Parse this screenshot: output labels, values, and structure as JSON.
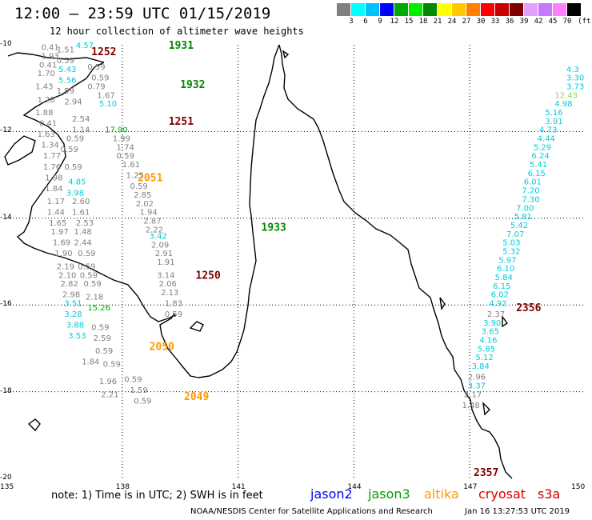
{
  "title": "12:00 – 23:59 UTC 01/15/2019",
  "subtitle": "12 hour collection of altimeter wave heights",
  "unit_label": "(ft)",
  "scale": {
    "colors": [
      "#7f7f7f",
      "#00ffff",
      "#00bfff",
      "#0000ff",
      "#00aa00",
      "#00ee00",
      "#008800",
      "#ffff00",
      "#ffc800",
      "#ff8000",
      "#ff0000",
      "#c80000",
      "#800000",
      "#e0a0ff",
      "#c878ff",
      "#ff80ff",
      "#000000"
    ],
    "ticks": [
      "3",
      "6",
      "9",
      "12",
      "15",
      "18",
      "21",
      "24",
      "27",
      "30",
      "33",
      "36",
      "39",
      "42",
      "45",
      "70"
    ]
  },
  "axes": {
    "lon_labels": [
      "135",
      "138",
      "141",
      "144",
      "147",
      "150"
    ],
    "lat_labels": [
      "-10",
      "-12",
      "-14",
      "-16",
      "-18",
      "-20"
    ]
  },
  "note": "note: 1) Time is in UTC; 2) SWH is in feet",
  "satellites": [
    {
      "name": "jason2",
      "color": "#0000ff"
    },
    {
      "name": "jason3",
      "color": "#00a000"
    },
    {
      "name": "altika",
      "color": "#ff9900"
    },
    {
      "name": "cryosat",
      "color": "#e00000"
    },
    {
      "name": "s3a",
      "color": "#c80000"
    }
  ],
  "footer_left": "NOAA/NESDIS Center for Satellite Applications and Research",
  "footer_right": "Jan 16 13:27:53 UTC 2019",
  "track_labels": [
    {
      "text": "1252",
      "lon": 137.2,
      "lat": -10.15,
      "color": "#800000"
    },
    {
      "text": "1931",
      "lon": 139.2,
      "lat": -10.0,
      "color": "#008800"
    },
    {
      "text": "1932",
      "lon": 139.5,
      "lat": -10.9,
      "color": "#008800"
    },
    {
      "text": "1251",
      "lon": 139.2,
      "lat": -11.75,
      "color": "#800000"
    },
    {
      "text": "2051",
      "lon": 138.4,
      "lat": -13.05,
      "color": "#ff9900"
    },
    {
      "text": "1933",
      "lon": 141.6,
      "lat": -14.2,
      "color": "#008800"
    },
    {
      "text": "1250",
      "lon": 139.9,
      "lat": -15.3,
      "color": "#800000"
    },
    {
      "text": "2050",
      "lon": 138.7,
      "lat": -16.95,
      "color": "#ff9900"
    },
    {
      "text": "2049",
      "lon": 139.6,
      "lat": -18.1,
      "color": "#ff9900"
    },
    {
      "text": "2356",
      "lon": 148.2,
      "lat": -16.05,
      "color": "#800000"
    },
    {
      "text": "2357",
      "lon": 147.1,
      "lat": -19.85,
      "color": "#800000"
    }
  ],
  "observations": [
    {
      "v": "0.41",
      "lon": 135.9,
      "lat": -10.05,
      "c": "#7f7f7f"
    },
    {
      "v": "1.51",
      "lon": 136.3,
      "lat": -10.1,
      "c": "#7f7f7f"
    },
    {
      "v": "4.57",
      "lon": 136.8,
      "lat": -10.0,
      "c": "#00ccdd"
    },
    {
      "v": "1.93",
      "lon": 135.9,
      "lat": -10.25,
      "c": "#7f7f7f"
    },
    {
      "v": "0.59",
      "lon": 136.3,
      "lat": -10.35,
      "c": "#7f7f7f"
    },
    {
      "v": "0.41",
      "lon": 135.85,
      "lat": -10.45,
      "c": "#7f7f7f"
    },
    {
      "v": "5.43",
      "lon": 136.35,
      "lat": -10.55,
      "c": "#00ccdd"
    },
    {
      "v": "0.59",
      "lon": 137.1,
      "lat": -10.5,
      "c": "#7f7f7f"
    },
    {
      "v": "1.70",
      "lon": 135.8,
      "lat": -10.65,
      "c": "#7f7f7f"
    },
    {
      "v": "5.56",
      "lon": 136.35,
      "lat": -10.8,
      "c": "#00ccdd"
    },
    {
      "v": "0.59",
      "lon": 137.2,
      "lat": -10.75,
      "c": "#7f7f7f"
    },
    {
      "v": "1.43",
      "lon": 135.75,
      "lat": -10.95,
      "c": "#7f7f7f"
    },
    {
      "v": "0.79",
      "lon": 137.1,
      "lat": -10.95,
      "c": "#7f7f7f"
    },
    {
      "v": "1.59",
      "lon": 136.3,
      "lat": -11.05,
      "c": "#7f7f7f"
    },
    {
      "v": "1.67",
      "lon": 137.35,
      "lat": -11.15,
      "c": "#7f7f7f"
    },
    {
      "v": "1.28",
      "lon": 135.8,
      "lat": -11.25,
      "c": "#7f7f7f"
    },
    {
      "v": "2.94",
      "lon": 136.5,
      "lat": -11.3,
      "c": "#7f7f7f"
    },
    {
      "v": "5.10",
      "lon": 137.4,
      "lat": -11.35,
      "c": "#00ccdd"
    },
    {
      "v": "1.88",
      "lon": 135.75,
      "lat": -11.55,
      "c": "#7f7f7f"
    },
    {
      "v": "2.54",
      "lon": 136.7,
      "lat": -11.7,
      "c": "#7f7f7f"
    },
    {
      "v": "0.41",
      "lon": 135.85,
      "lat": -11.8,
      "c": "#7f7f7f"
    },
    {
      "v": "1.14",
      "lon": 136.7,
      "lat": -11.95,
      "c": "#7f7f7f"
    },
    {
      "v": "17.90",
      "lon": 137.55,
      "lat": -11.95,
      "c": "#00aa00"
    },
    {
      "v": "1.63",
      "lon": 135.8,
      "lat": -12.05,
      "c": "#7f7f7f"
    },
    {
      "v": "0.59",
      "lon": 136.55,
      "lat": -12.15,
      "c": "#7f7f7f"
    },
    {
      "v": "1.99",
      "lon": 137.75,
      "lat": -12.15,
      "c": "#7f7f7f"
    },
    {
      "v": "1.34",
      "lon": 135.9,
      "lat": -12.3,
      "c": "#7f7f7f"
    },
    {
      "v": "1.74",
      "lon": 137.85,
      "lat": -12.35,
      "c": "#7f7f7f"
    },
    {
      "v": "0.59",
      "lon": 136.4,
      "lat": -12.4,
      "c": "#7f7f7f"
    },
    {
      "v": "1.77",
      "lon": 135.95,
      "lat": -12.55,
      "c": "#7f7f7f"
    },
    {
      "v": "0.59",
      "lon": 137.85,
      "lat": -12.55,
      "c": "#7f7f7f"
    },
    {
      "v": "1.76",
      "lon": 135.95,
      "lat": -12.8,
      "c": "#7f7f7f"
    },
    {
      "v": "0.59",
      "lon": 136.5,
      "lat": -12.8,
      "c": "#7f7f7f"
    },
    {
      "v": "1.61",
      "lon": 138.0,
      "lat": -12.75,
      "c": "#7f7f7f"
    },
    {
      "v": "1.98",
      "lon": 136.0,
      "lat": -13.05,
      "c": "#7f7f7f"
    },
    {
      "v": "1.25",
      "lon": 138.1,
      "lat": -13.0,
      "c": "#7f7f7f"
    },
    {
      "v": "4.85",
      "lon": 136.6,
      "lat": -13.15,
      "c": "#00ccdd"
    },
    {
      "v": "0.59",
      "lon": 138.2,
      "lat": -13.25,
      "c": "#7f7f7f"
    },
    {
      "v": "1.84",
      "lon": 136.0,
      "lat": -13.3,
      "c": "#7f7f7f"
    },
    {
      "v": "3.98",
      "lon": 136.55,
      "lat": -13.4,
      "c": "#00ccdd"
    },
    {
      "v": "2.85",
      "lon": 138.3,
      "lat": -13.45,
      "c": "#7f7f7f"
    },
    {
      "v": "1.17",
      "lon": 136.05,
      "lat": -13.6,
      "c": "#7f7f7f"
    },
    {
      "v": "2.60",
      "lon": 136.7,
      "lat": -13.6,
      "c": "#7f7f7f"
    },
    {
      "v": "2.02",
      "lon": 138.35,
      "lat": -13.65,
      "c": "#7f7f7f"
    },
    {
      "v": "1.44",
      "lon": 136.05,
      "lat": -13.85,
      "c": "#7f7f7f"
    },
    {
      "v": "1.61",
      "lon": 136.7,
      "lat": -13.85,
      "c": "#7f7f7f"
    },
    {
      "v": "1.94",
      "lon": 138.45,
      "lat": -13.85,
      "c": "#7f7f7f"
    },
    {
      "v": "1.65",
      "lon": 136.1,
      "lat": -14.1,
      "c": "#7f7f7f"
    },
    {
      "v": "2.53",
      "lon": 136.8,
      "lat": -14.1,
      "c": "#7f7f7f"
    },
    {
      "v": "2.87",
      "lon": 138.55,
      "lat": -14.05,
      "c": "#7f7f7f"
    },
    {
      "v": "1.97",
      "lon": 136.15,
      "lat": -14.3,
      "c": "#7f7f7f"
    },
    {
      "v": "1.48",
      "lon": 136.75,
      "lat": -14.3,
      "c": "#7f7f7f"
    },
    {
      "v": "2.22",
      "lon": 138.6,
      "lat": -14.25,
      "c": "#7f7f7f"
    },
    {
      "v": "1.69",
      "lon": 136.2,
      "lat": -14.55,
      "c": "#7f7f7f"
    },
    {
      "v": "2.44",
      "lon": 136.75,
      "lat": -14.55,
      "c": "#7f7f7f"
    },
    {
      "v": "3.42",
      "lon": 138.7,
      "lat": -14.4,
      "c": "#00ccdd"
    },
    {
      "v": "2.09",
      "lon": 138.75,
      "lat": -14.6,
      "c": "#7f7f7f"
    },
    {
      "v": "1.90",
      "lon": 136.25,
      "lat": -14.8,
      "c": "#7f7f7f"
    },
    {
      "v": "0.59",
      "lon": 136.85,
      "lat": -14.8,
      "c": "#7f7f7f"
    },
    {
      "v": "2.91",
      "lon": 138.85,
      "lat": -14.8,
      "c": "#7f7f7f"
    },
    {
      "v": "2.19",
      "lon": 136.3,
      "lat": -15.1,
      "c": "#7f7f7f"
    },
    {
      "v": "0.59",
      "lon": 136.85,
      "lat": -15.1,
      "c": "#7f7f7f"
    },
    {
      "v": "1.91",
      "lon": 138.9,
      "lat": -15.0,
      "c": "#7f7f7f"
    },
    {
      "v": "2.10",
      "lon": 136.35,
      "lat": -15.3,
      "c": "#7f7f7f"
    },
    {
      "v": "0.59",
      "lon": 136.9,
      "lat": -15.3,
      "c": "#7f7f7f"
    },
    {
      "v": "3.14",
      "lon": 138.9,
      "lat": -15.3,
      "c": "#7f7f7f"
    },
    {
      "v": "2.82",
      "lon": 136.4,
      "lat": -15.5,
      "c": "#7f7f7f"
    },
    {
      "v": "0.59",
      "lon": 137.0,
      "lat": -15.5,
      "c": "#7f7f7f"
    },
    {
      "v": "2.06",
      "lon": 138.95,
      "lat": -15.5,
      "c": "#7f7f7f"
    },
    {
      "v": "2.98",
      "lon": 136.45,
      "lat": -15.75,
      "c": "#7f7f7f"
    },
    {
      "v": "2.18",
      "lon": 137.05,
      "lat": -15.8,
      "c": "#7f7f7f"
    },
    {
      "v": "2.13",
      "lon": 139.0,
      "lat": -15.7,
      "c": "#7f7f7f"
    },
    {
      "v": "3.51",
      "lon": 136.5,
      "lat": -15.95,
      "c": "#00ccdd"
    },
    {
      "v": "15.26",
      "lon": 137.1,
      "lat": -16.05,
      "c": "#00aa00"
    },
    {
      "v": "1.83",
      "lon": 139.1,
      "lat": -15.95,
      "c": "#7f7f7f"
    },
    {
      "v": "3.28",
      "lon": 136.5,
      "lat": -16.2,
      "c": "#00ccdd"
    },
    {
      "v": "0.59",
      "lon": 139.1,
      "lat": -16.2,
      "c": "#7f7f7f"
    },
    {
      "v": "3.88",
      "lon": 136.55,
      "lat": -16.45,
      "c": "#00ccdd"
    },
    {
      "v": "0.59",
      "lon": 137.2,
      "lat": -16.5,
      "c": "#7f7f7f"
    },
    {
      "v": "3.53",
      "lon": 136.6,
      "lat": -16.7,
      "c": "#00ccdd"
    },
    {
      "v": "2.59",
      "lon": 137.25,
      "lat": -16.75,
      "c": "#7f7f7f"
    },
    {
      "v": "0.59",
      "lon": 137.3,
      "lat": -17.05,
      "c": "#7f7f7f"
    },
    {
      "v": "1.84",
      "lon": 136.95,
      "lat": -17.3,
      "c": "#7f7f7f"
    },
    {
      "v": "0.59",
      "lon": 137.5,
      "lat": -17.35,
      "c": "#7f7f7f"
    },
    {
      "v": "1.96",
      "lon": 137.4,
      "lat": -17.75,
      "c": "#7f7f7f"
    },
    {
      "v": "0.59",
      "lon": 138.05,
      "lat": -17.7,
      "c": "#7f7f7f"
    },
    {
      "v": "1.59",
      "lon": 138.2,
      "lat": -17.95,
      "c": "#7f7f7f"
    },
    {
      "v": "2.21",
      "lon": 137.45,
      "lat": -18.05,
      "c": "#7f7f7f"
    },
    {
      "v": "0.59",
      "lon": 138.3,
      "lat": -18.2,
      "c": "#7f7f7f"
    },
    {
      "v": "4.3",
      "lon": 149.6,
      "lat": -10.55,
      "c": "#00ccdd"
    },
    {
      "v": "3.30",
      "lon": 149.55,
      "lat": -10.75,
      "c": "#00ccdd"
    },
    {
      "v": "3.73",
      "lon": 149.55,
      "lat": -10.95,
      "c": "#00ccdd"
    },
    {
      "v": "12.43",
      "lon": 149.2,
      "lat": -11.15,
      "c": "#88dd44"
    },
    {
      "v": "4.98",
      "lon": 149.2,
      "lat": -11.35,
      "c": "#00ccdd"
    },
    {
      "v": "5.16",
      "lon": 148.95,
      "lat": -11.55,
      "c": "#00ccdd"
    },
    {
      "v": "3.91",
      "lon": 148.95,
      "lat": -11.75,
      "c": "#00ccdd"
    },
    {
      "v": "4.73",
      "lon": 148.8,
      "lat": -11.95,
      "c": "#00ccdd"
    },
    {
      "v": "4.44",
      "lon": 148.75,
      "lat": -12.15,
      "c": "#00ccdd"
    },
    {
      "v": "5.29",
      "lon": 148.65,
      "lat": -12.35,
      "c": "#00ccdd"
    },
    {
      "v": "6.24",
      "lon": 148.6,
      "lat": -12.55,
      "c": "#00ccdd"
    },
    {
      "v": "5.41",
      "lon": 148.55,
      "lat": -12.75,
      "c": "#00ccdd"
    },
    {
      "v": "6.15",
      "lon": 148.5,
      "lat": -12.95,
      "c": "#00ccdd"
    },
    {
      "v": "6.01",
      "lon": 148.4,
      "lat": -13.15,
      "c": "#00ccdd"
    },
    {
      "v": "7.20",
      "lon": 148.35,
      "lat": -13.35,
      "c": "#00ccdd"
    },
    {
      "v": "7.30",
      "lon": 148.35,
      "lat": -13.55,
      "c": "#00ccdd"
    },
    {
      "v": "7.00",
      "lon": 148.2,
      "lat": -13.75,
      "c": "#00ccdd"
    },
    {
      "v": "5.81",
      "lon": 148.15,
      "lat": -13.95,
      "c": "#00ccdd"
    },
    {
      "v": "5.42",
      "lon": 148.05,
      "lat": -14.15,
      "c": "#00ccdd"
    },
    {
      "v": "7.07",
      "lon": 147.95,
      "lat": -14.35,
      "c": "#00ccdd"
    },
    {
      "v": "5.03",
      "lon": 147.85,
      "lat": -14.55,
      "c": "#00ccdd"
    },
    {
      "v": "5.32",
      "lon": 147.85,
      "lat": -14.75,
      "c": "#00ccdd"
    },
    {
      "v": "5.97",
      "lon": 147.75,
      "lat": -14.95,
      "c": "#00ccdd"
    },
    {
      "v": "6.10",
      "lon": 147.7,
      "lat": -15.15,
      "c": "#00ccdd"
    },
    {
      "v": "5.84",
      "lon": 147.65,
      "lat": -15.35,
      "c": "#00ccdd"
    },
    {
      "v": "6.15",
      "lon": 147.6,
      "lat": -15.55,
      "c": "#00ccdd"
    },
    {
      "v": "6.02",
      "lon": 147.55,
      "lat": -15.75,
      "c": "#00ccdd"
    },
    {
      "v": "4.92",
      "lon": 147.5,
      "lat": -15.95,
      "c": "#00ccdd"
    },
    {
      "v": "2.37",
      "lon": 147.45,
      "lat": -16.2,
      "c": "#7f7f7f"
    },
    {
      "v": "3.90",
      "lon": 147.35,
      "lat": -16.4,
      "c": "#00ccdd"
    },
    {
      "v": "3.65",
      "lon": 147.3,
      "lat": -16.6,
      "c": "#00ccdd"
    },
    {
      "v": "4.16",
      "lon": 147.25,
      "lat": -16.8,
      "c": "#00ccdd"
    },
    {
      "v": "5.85",
      "lon": 147.2,
      "lat": -17.0,
      "c": "#00ccdd"
    },
    {
      "v": "5.12",
      "lon": 147.15,
      "lat": -17.2,
      "c": "#00ccdd"
    },
    {
      "v": "3.84",
      "lon": 147.05,
      "lat": -17.4,
      "c": "#00ccdd"
    },
    {
      "v": "2.96",
      "lon": 146.95,
      "lat": -17.65,
      "c": "#7f7f7f"
    },
    {
      "v": "3.37",
      "lon": 146.95,
      "lat": -17.85,
      "c": "#00ccdd"
    },
    {
      "v": "2.17",
      "lon": 146.85,
      "lat": -18.05,
      "c": "#7f7f7f"
    },
    {
      "v": "1.48",
      "lon": 146.8,
      "lat": -18.3,
      "c": "#7f7f7f"
    }
  ]
}
